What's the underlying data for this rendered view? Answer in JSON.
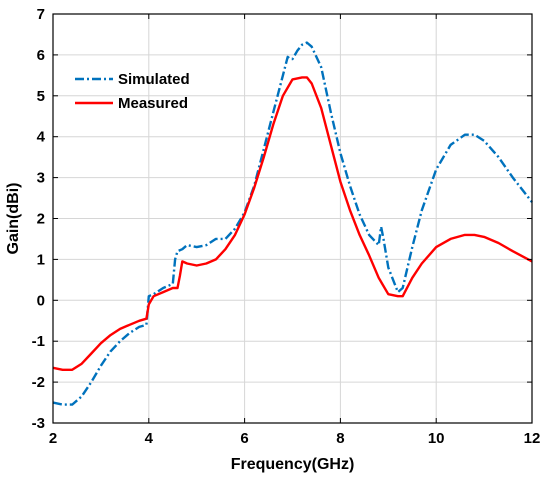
{
  "chart_data": {
    "type": "line",
    "title": "",
    "xlabel": "Frequency(GHz)",
    "ylabel": "Gain(dBi)",
    "xlim": [
      2,
      12
    ],
    "ylim": [
      -3,
      7
    ],
    "xticks": [
      2,
      4,
      6,
      8,
      10,
      12
    ],
    "yticks": [
      -3,
      -2,
      -1,
      0,
      1,
      2,
      3,
      4,
      5,
      6,
      7
    ],
    "grid": true,
    "legend": "top-left",
    "series": [
      {
        "name": "Simulated",
        "color": "#0072BD",
        "style": "dash-dot",
        "x": [
          2.0,
          2.2,
          2.4,
          2.6,
          2.8,
          3.0,
          3.2,
          3.4,
          3.6,
          3.8,
          3.95,
          4.0,
          4.1,
          4.3,
          4.5,
          4.55,
          4.6,
          4.7,
          4.8,
          5.0,
          5.2,
          5.4,
          5.5,
          5.6,
          5.8,
          6.0,
          6.2,
          6.4,
          6.6,
          6.8,
          6.9,
          6.95,
          7.0,
          7.1,
          7.2,
          7.3,
          7.4,
          7.6,
          7.8,
          8.0,
          8.2,
          8.4,
          8.6,
          8.8,
          8.85,
          8.9,
          9.0,
          9.2,
          9.3,
          9.5,
          9.7,
          10.0,
          10.3,
          10.6,
          10.8,
          11.0,
          11.3,
          11.6,
          12.0
        ],
        "y": [
          -2.5,
          -2.55,
          -2.55,
          -2.35,
          -2.0,
          -1.6,
          -1.25,
          -1.0,
          -0.8,
          -0.65,
          -0.6,
          0.1,
          0.15,
          0.3,
          0.4,
          1.0,
          1.2,
          1.25,
          1.35,
          1.3,
          1.35,
          1.5,
          1.5,
          1.5,
          1.75,
          2.15,
          2.8,
          3.7,
          4.6,
          5.5,
          5.95,
          5.9,
          5.9,
          6.1,
          6.25,
          6.3,
          6.2,
          5.7,
          4.6,
          3.6,
          2.8,
          2.1,
          1.6,
          1.35,
          1.8,
          1.5,
          0.8,
          0.2,
          0.3,
          1.3,
          2.2,
          3.2,
          3.8,
          4.05,
          4.05,
          3.9,
          3.5,
          3.0,
          2.4
        ]
      },
      {
        "name": "Measured",
        "color": "#FF0000",
        "style": "solid",
        "x": [
          2.0,
          2.2,
          2.4,
          2.6,
          2.8,
          3.0,
          3.2,
          3.4,
          3.6,
          3.8,
          3.95,
          4.0,
          4.1,
          4.3,
          4.5,
          4.6,
          4.65,
          4.7,
          4.8,
          5.0,
          5.2,
          5.4,
          5.6,
          5.8,
          6.0,
          6.2,
          6.4,
          6.6,
          6.8,
          7.0,
          7.2,
          7.3,
          7.4,
          7.6,
          7.8,
          8.0,
          8.2,
          8.4,
          8.6,
          8.8,
          9.0,
          9.2,
          9.3,
          9.5,
          9.7,
          10.0,
          10.3,
          10.6,
          10.8,
          11.0,
          11.3,
          11.6,
          12.0
        ],
        "y": [
          -1.65,
          -1.7,
          -1.7,
          -1.55,
          -1.3,
          -1.05,
          -0.85,
          -0.7,
          -0.6,
          -0.5,
          -0.45,
          -0.1,
          0.1,
          0.2,
          0.3,
          0.3,
          0.6,
          0.95,
          0.9,
          0.85,
          0.9,
          1.0,
          1.25,
          1.6,
          2.1,
          2.75,
          3.5,
          4.3,
          5.0,
          5.4,
          5.45,
          5.45,
          5.3,
          4.7,
          3.8,
          2.9,
          2.2,
          1.6,
          1.1,
          0.55,
          0.15,
          0.1,
          0.1,
          0.55,
          0.9,
          1.3,
          1.5,
          1.6,
          1.6,
          1.55,
          1.4,
          1.2,
          0.95
        ]
      }
    ]
  }
}
